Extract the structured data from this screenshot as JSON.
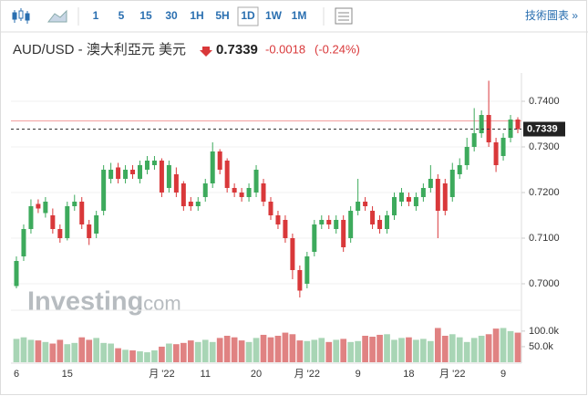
{
  "toolbar": {
    "intervals": [
      "1",
      "5",
      "15",
      "30",
      "1H",
      "5H",
      "1D",
      "1W",
      "1M"
    ],
    "link": "技術圖表 »"
  },
  "header": {
    "title": "AUD/USD - 澳大利亞元 美元",
    "price": "0.7339",
    "change": "-0.0018",
    "change_pct": "(-0.24%)"
  },
  "watermark": {
    "brand": "Investing",
    "suffix": ".com"
  },
  "chart_data": {
    "type": "candlestick",
    "categories": [
      "6",
      null,
      null,
      null,
      null,
      null,
      null,
      "15",
      null,
      null,
      null,
      null,
      null,
      null,
      null,
      null,
      null,
      null,
      null,
      null,
      "月 '22",
      null,
      null,
      null,
      null,
      null,
      "11",
      null,
      null,
      null,
      null,
      null,
      null,
      "20",
      null,
      null,
      null,
      null,
      null,
      null,
      "月 '22",
      null,
      null,
      null,
      null,
      null,
      null,
      "9",
      null,
      null,
      null,
      null,
      null,
      null,
      "18",
      null,
      null,
      null,
      null,
      null,
      "月 '22",
      null,
      null,
      null,
      null,
      null,
      null,
      "9",
      null,
      null
    ],
    "open": [
      0.6995,
      0.706,
      0.712,
      0.7175,
      0.7155,
      0.715,
      0.712,
      0.71,
      0.717,
      0.718,
      0.713,
      0.711,
      0.716,
      0.723,
      0.7255,
      0.723,
      0.725,
      0.723,
      0.725,
      0.726,
      0.727,
      0.721,
      0.724,
      0.722,
      0.718,
      0.717,
      0.719,
      0.722,
      0.729,
      0.727,
      0.721,
      0.72,
      0.719,
      0.72,
      0.722,
      0.718,
      0.715,
      0.714,
      0.71,
      0.703,
      0.7,
      0.707,
      0.713,
      0.714,
      0.712,
      0.714,
      0.71,
      0.716,
      0.718,
      0.716,
      0.714,
      0.712,
      0.715,
      0.718,
      0.719,
      0.717,
      0.719,
      0.721,
      0.723,
      0.722,
      0.719,
      0.724,
      0.726,
      0.73,
      0.733,
      0.737,
      0.731,
      0.728,
      0.732,
      0.736
    ],
    "high": [
      0.706,
      0.713,
      0.7185,
      0.7185,
      0.719,
      0.7165,
      0.713,
      0.718,
      0.7195,
      0.719,
      0.714,
      0.716,
      0.726,
      0.7265,
      0.7265,
      0.726,
      0.726,
      0.727,
      0.728,
      0.728,
      0.7275,
      0.727,
      0.7255,
      0.7225,
      0.719,
      0.719,
      0.723,
      0.731,
      0.7295,
      0.7275,
      0.722,
      0.721,
      0.722,
      0.726,
      0.723,
      0.719,
      0.716,
      0.715,
      0.711,
      0.704,
      0.707,
      0.714,
      0.715,
      0.715,
      0.715,
      0.715,
      0.717,
      0.723,
      0.719,
      0.717,
      0.715,
      0.716,
      0.72,
      0.721,
      0.72,
      0.72,
      0.722,
      0.726,
      0.724,
      0.723,
      0.7265,
      0.7275,
      0.732,
      0.7385,
      0.738,
      0.7445,
      0.732,
      0.733,
      0.737,
      0.7365
    ],
    "low": [
      0.699,
      0.705,
      0.711,
      0.7155,
      0.7145,
      0.711,
      0.709,
      0.7095,
      0.716,
      0.712,
      0.7085,
      0.71,
      0.715,
      0.722,
      0.722,
      0.722,
      0.723,
      0.722,
      0.724,
      0.725,
      0.719,
      0.72,
      0.719,
      0.716,
      0.716,
      0.716,
      0.718,
      0.721,
      0.724,
      0.72,
      0.719,
      0.718,
      0.718,
      0.719,
      0.717,
      0.714,
      0.712,
      0.709,
      0.701,
      0.697,
      0.699,
      0.706,
      0.712,
      0.712,
      0.711,
      0.707,
      0.709,
      0.715,
      0.716,
      0.712,
      0.711,
      0.711,
      0.714,
      0.717,
      0.717,
      0.716,
      0.718,
      0.72,
      0.71,
      0.715,
      0.718,
      0.723,
      0.725,
      0.729,
      0.732,
      0.73,
      0.7245,
      0.727,
      0.731,
      0.733
    ],
    "close": [
      0.705,
      0.712,
      0.717,
      0.7165,
      0.718,
      0.712,
      0.71,
      0.717,
      0.718,
      0.713,
      0.71,
      0.715,
      0.725,
      0.725,
      0.723,
      0.725,
      0.724,
      0.726,
      0.727,
      0.727,
      0.72,
      0.726,
      0.72,
      0.717,
      0.717,
      0.718,
      0.722,
      0.729,
      0.725,
      0.721,
      0.72,
      0.719,
      0.721,
      0.725,
      0.718,
      0.715,
      0.713,
      0.71,
      0.703,
      0.6985,
      0.706,
      0.713,
      0.714,
      0.713,
      0.714,
      0.708,
      0.716,
      0.718,
      0.717,
      0.713,
      0.712,
      0.715,
      0.719,
      0.72,
      0.718,
      0.719,
      0.721,
      0.723,
      0.716,
      0.716,
      0.725,
      0.726,
      0.73,
      0.733,
      0.737,
      0.731,
      0.726,
      0.732,
      0.736,
      0.7339
    ],
    "volume": [
      75000,
      80000,
      72000,
      70000,
      65000,
      60000,
      72000,
      58000,
      62000,
      80000,
      72000,
      78000,
      62000,
      60000,
      45000,
      40000,
      38000,
      35000,
      32000,
      38000,
      50000,
      60000,
      58000,
      62000,
      70000,
      65000,
      72000,
      65000,
      78000,
      85000,
      80000,
      70000,
      65000,
      78000,
      88000,
      80000,
      85000,
      95000,
      90000,
      70000,
      68000,
      72000,
      78000,
      65000,
      72000,
      75000,
      65000,
      68000,
      85000,
      82000,
      88000,
      90000,
      72000,
      78000,
      80000,
      72000,
      75000,
      68000,
      110000,
      85000,
      90000,
      80000,
      65000,
      78000,
      85000,
      90000,
      108000,
      110000,
      100000,
      95000
    ],
    "ylim": [
      0.6946,
      0.7462
    ],
    "yticks": [
      {
        "value": 0.7,
        "label": "0.7000"
      },
      {
        "value": 0.71,
        "label": "0.7100"
      },
      {
        "value": 0.72,
        "label": "0.7200"
      },
      {
        "value": 0.73,
        "label": "0.7300"
      },
      {
        "value": 0.74,
        "label": "0.7400"
      }
    ],
    "volume_lim": [
      0,
      167000
    ],
    "volume_ticks": [
      {
        "value": 50000,
        "label": "50.0k"
      },
      {
        "value": 100000,
        "label": "100.0k"
      }
    ],
    "last_price": {
      "value": 0.7339,
      "label": "0.7339"
    },
    "reference_line": 0.7357,
    "up_color": "#3daa5c",
    "down_color": "#d9383a",
    "up_volume_color": "#a8d5b5",
    "down_volume_color": "#e08282"
  }
}
